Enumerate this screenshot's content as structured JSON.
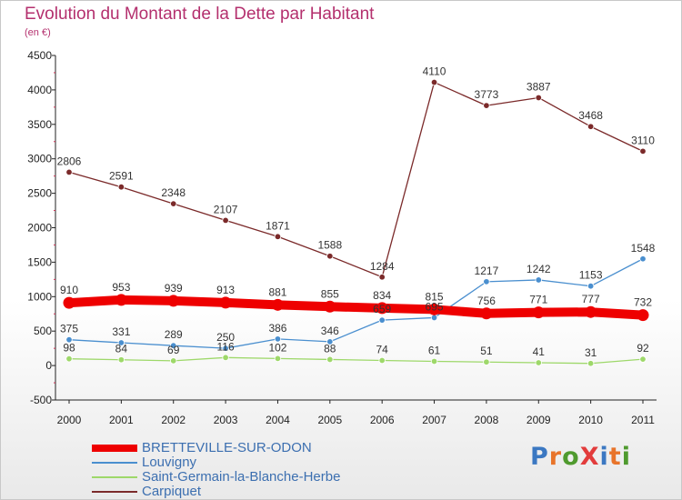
{
  "title": "Evolution du Montant de la Dette par Habitant",
  "subtitle": "(en €)",
  "logo": {
    "text": "ProXiti",
    "colors": [
      "#3b78c2",
      "#e8742a",
      "#4f9a2e",
      "#e23c3c",
      "#3b78c2",
      "#e8742a",
      "#4f9a2e"
    ]
  },
  "chart_data": {
    "type": "line",
    "x": [
      "2000",
      "2001",
      "2002",
      "2003",
      "2004",
      "2005",
      "2006",
      "2007",
      "2008",
      "2009",
      "2010",
      "2011"
    ],
    "ylim": [
      -500,
      4500
    ],
    "yticks": [
      -500,
      0,
      500,
      1000,
      1500,
      2000,
      2500,
      3000,
      3500,
      4000,
      4500
    ],
    "grid": false,
    "legend_position": "bottom-left",
    "series": [
      {
        "name": "BRETTEVILLE-SUR-ODON",
        "color": "#ee0000",
        "values": [
          910,
          953,
          939,
          913,
          881,
          855,
          834,
          815,
          756,
          771,
          777,
          732
        ]
      },
      {
        "name": "Louvigny",
        "color": "#4a8fcf",
        "values": [
          375,
          331,
          289,
          250,
          386,
          346,
          659,
          695,
          1217,
          1242,
          1153,
          1548
        ]
      },
      {
        "name": "Saint-Germain-la-Blanche-Herbe",
        "color": "#9ed86a",
        "values": [
          98,
          84,
          69,
          116,
          102,
          88,
          74,
          61,
          51,
          41,
          31,
          92
        ]
      },
      {
        "name": "Carpiquet",
        "color": "#7b2a2a",
        "values": [
          2806,
          2591,
          2348,
          2107,
          1871,
          1588,
          1284,
          4110,
          3773,
          3887,
          3468,
          3110
        ]
      }
    ]
  }
}
